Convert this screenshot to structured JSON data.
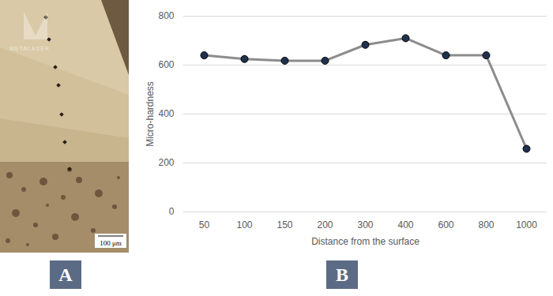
{
  "panels": {
    "A": {
      "label": "A",
      "watermark": "METALASER",
      "scale_bar": "100 μm"
    },
    "B": {
      "label": "B"
    }
  },
  "chart_data": {
    "type": "line",
    "x_label": "Distance from the surface",
    "y_label": "Micro-hardness",
    "categories": [
      "50",
      "100",
      "150",
      "200",
      "300",
      "400",
      "600",
      "800",
      "1000"
    ],
    "values": [
      640,
      625,
      618,
      618,
      683,
      710,
      640,
      640,
      258
    ],
    "color": "#8c8c8c",
    "marker": "circle",
    "ylim": [
      0,
      800
    ],
    "yticks": [
      0,
      200,
      400,
      600,
      800
    ],
    "grid": true
  }
}
